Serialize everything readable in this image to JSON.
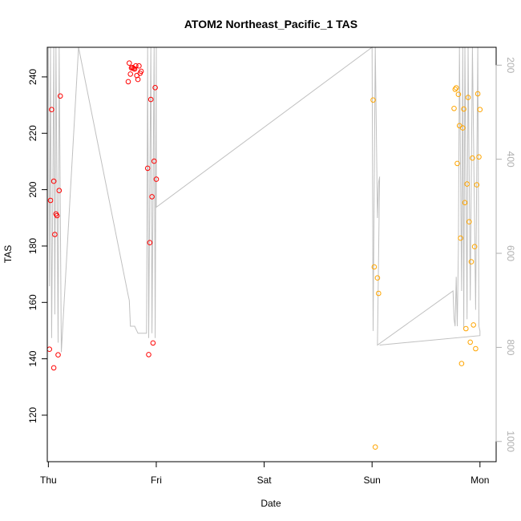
{
  "chart_data": {
    "type": "scatter",
    "title": "ATOM2 Northeast_Pacific_1 TAS",
    "xlabel": "Date",
    "ylabel": "TAS",
    "x_ticks": [
      "Thu",
      "Fri",
      "Sat",
      "Sun",
      "Mon"
    ],
    "xlim": [
      -0.01,
      4.15
    ],
    "ylim": [
      103.5,
      250.5
    ],
    "y_ticks": [
      120,
      140,
      160,
      180,
      200,
      220,
      240
    ],
    "y2_ticks": [
      200,
      400,
      600,
      800,
      1000
    ],
    "y2lim": [
      1043,
      162
    ],
    "y2_reversed": true,
    "grid": false,
    "legend": "none",
    "series": [
      {
        "color": "#ff0000",
        "points": [
          [
            0.01,
            143.4
          ],
          [
            0.02,
            196.2
          ],
          [
            0.03,
            228.4
          ],
          [
            0.05,
            203.0
          ],
          [
            0.05,
            136.8
          ],
          [
            0.06,
            184.1
          ],
          [
            0.07,
            191.4
          ],
          [
            0.08,
            190.8
          ],
          [
            0.09,
            141.4
          ],
          [
            0.1,
            199.7
          ],
          [
            0.11,
            233.2
          ],
          [
            0.74,
            238.3
          ],
          [
            0.75,
            244.9
          ],
          [
            0.76,
            241.0
          ],
          [
            0.77,
            243.2
          ],
          [
            0.78,
            243.3
          ],
          [
            0.79,
            243.0
          ],
          [
            0.8,
            242.8
          ],
          [
            0.81,
            243.9
          ],
          [
            0.82,
            240.5
          ],
          [
            0.83,
            239.1
          ],
          [
            0.84,
            243.9
          ],
          [
            0.85,
            241.3
          ],
          [
            0.86,
            242.0
          ],
          [
            0.92,
            207.6
          ],
          [
            0.93,
            141.5
          ],
          [
            0.94,
            181.2
          ],
          [
            0.95,
            232.0
          ],
          [
            0.96,
            197.5
          ],
          [
            0.97,
            145.6
          ],
          [
            0.98,
            210.1
          ],
          [
            0.99,
            236.2
          ],
          [
            1.0,
            203.7
          ]
        ]
      },
      {
        "color": "#ffa500",
        "points": [
          [
            3.01,
            231.8
          ],
          [
            3.02,
            172.6
          ],
          [
            3.03,
            108.7
          ],
          [
            3.05,
            168.7
          ],
          [
            3.06,
            163.2
          ],
          [
            3.76,
            228.8
          ],
          [
            3.77,
            235.6
          ],
          [
            3.78,
            236.1
          ],
          [
            3.79,
            209.3
          ],
          [
            3.8,
            233.8
          ],
          [
            3.81,
            222.7
          ],
          [
            3.82,
            182.8
          ],
          [
            3.83,
            138.3
          ],
          [
            3.84,
            221.9
          ],
          [
            3.85,
            228.6
          ],
          [
            3.86,
            195.4
          ],
          [
            3.87,
            150.7
          ],
          [
            3.88,
            202.0
          ],
          [
            3.89,
            232.7
          ],
          [
            3.9,
            188.6
          ],
          [
            3.91,
            145.9
          ],
          [
            3.92,
            174.4
          ],
          [
            3.93,
            211.2
          ],
          [
            3.94,
            152.0
          ],
          [
            3.95,
            179.8
          ],
          [
            3.96,
            143.6
          ],
          [
            3.97,
            201.7
          ],
          [
            3.98,
            234.0
          ],
          [
            3.99,
            211.6
          ],
          [
            4.0,
            228.4
          ]
        ]
      }
    ],
    "secondary_line": {
      "color": "#c0c0c0",
      "points": [
        [
          0.0,
          162
        ],
        [
          0.01,
          670
        ],
        [
          0.02,
          162
        ],
        [
          0.03,
          780
        ],
        [
          0.04,
          500
        ],
        [
          0.05,
          162
        ],
        [
          0.06,
          730
        ],
        [
          0.07,
          162
        ],
        [
          0.09,
          790
        ],
        [
          0.1,
          162
        ],
        [
          0.12,
          810
        ],
        [
          0.28,
          162
        ],
        [
          0.74,
          690
        ],
        [
          0.75,
          700
        ],
        [
          0.76,
          755
        ],
        [
          0.8,
          755
        ],
        [
          0.83,
          770
        ],
        [
          0.88,
          770
        ],
        [
          0.91,
          770
        ],
        [
          0.92,
          162
        ],
        [
          0.93,
          780
        ],
        [
          0.95,
          162
        ],
        [
          0.96,
          770
        ],
        [
          0.98,
          162
        ],
        [
          0.99,
          780
        ],
        [
          1.0,
          162
        ],
        [
          1.0,
          502
        ],
        [
          3.0,
          162
        ],
        [
          3.01,
          765
        ],
        [
          3.03,
          162
        ],
        [
          3.05,
          525
        ],
        [
          3.06,
          450
        ],
        [
          3.07,
          437
        ],
        [
          3.05,
          795
        ],
        [
          3.75,
          680
        ],
        [
          3.76,
          740
        ],
        [
          3.77,
          755
        ],
        [
          3.78,
          650
        ],
        [
          3.79,
          755
        ],
        [
          3.8,
          590
        ],
        [
          3.81,
          162
        ],
        [
          3.83,
          680
        ],
        [
          3.84,
          162
        ],
        [
          3.85,
          760
        ],
        [
          3.86,
          162
        ],
        [
          3.88,
          740
        ],
        [
          3.89,
          162
        ],
        [
          3.91,
          700
        ],
        [
          3.93,
          162
        ],
        [
          3.96,
          720
        ],
        [
          3.98,
          162
        ],
        [
          3.99,
          755
        ],
        [
          4.0,
          765
        ],
        [
          4.0,
          775
        ],
        [
          3.07,
          795
        ]
      ]
    }
  }
}
